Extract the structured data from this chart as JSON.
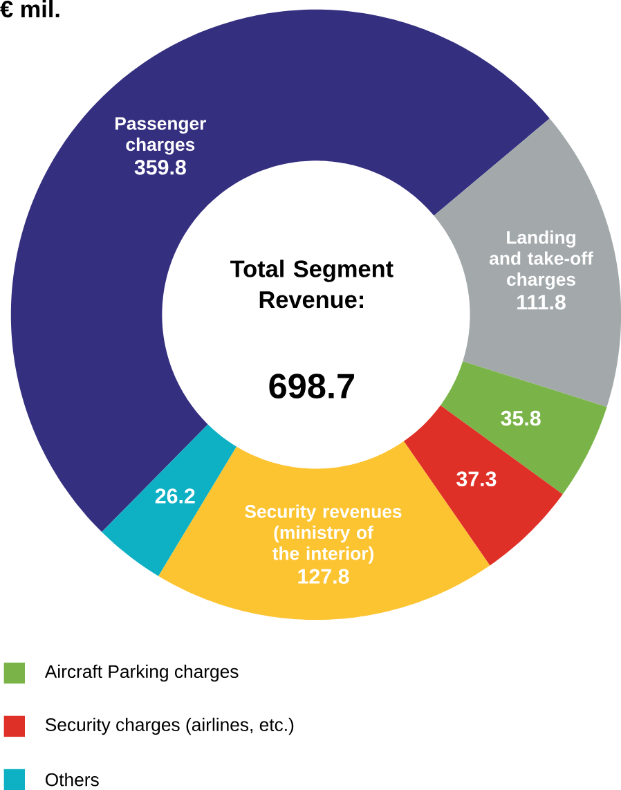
{
  "chart_data": {
    "type": "donut",
    "title": "€ mil.",
    "categories": [
      "Passenger charges",
      "Landing and take-off charges",
      "Aircraft Parking charges",
      "Security charges (airlines, etc.)",
      "Security revenues (ministry of the interior)",
      "Others"
    ],
    "values": [
      359.8,
      111.8,
      35.8,
      37.3,
      127.8,
      26.2
    ],
    "colors": [
      "#352f80",
      "#a3a9ab",
      "#7ab449",
      "#df3027",
      "#fdc432",
      "#0eb0c4"
    ],
    "annotations": [
      "Total Segment Revenue:",
      "698.7"
    ],
    "data_labels": true,
    "legend": "bottom left"
  }
}
